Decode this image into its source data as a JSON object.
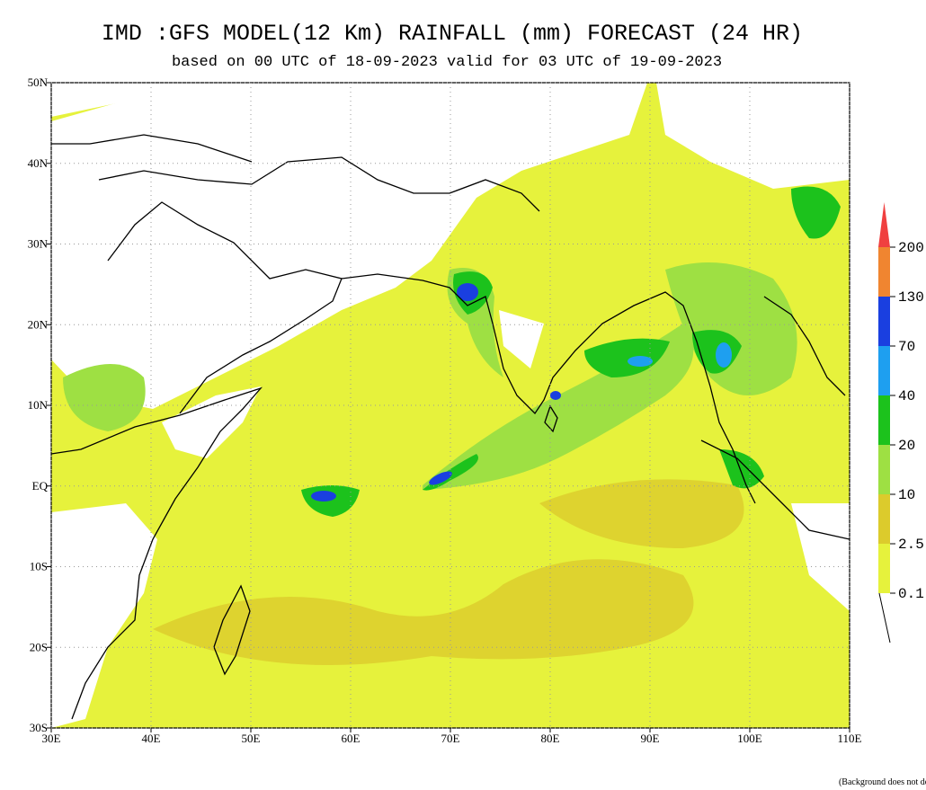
{
  "header": {
    "title": "IMD :GFS MODEL(12 Km) RAINFALL (mm) FORECAST (24 HR)",
    "subtitle": "based on 00 UTC of 18-09-2023 valid for 03 UTC of 19-09-2023"
  },
  "map": {
    "lonlim": [
      30,
      110
    ],
    "latlim": [
      -30,
      50
    ],
    "grid": true,
    "lon_ticks": [
      {
        "value": 30,
        "label": "30E"
      },
      {
        "value": 40,
        "label": "40E"
      },
      {
        "value": 50,
        "label": "50E"
      },
      {
        "value": 60,
        "label": "60E"
      },
      {
        "value": 70,
        "label": "70E"
      },
      {
        "value": 80,
        "label": "80E"
      },
      {
        "value": 90,
        "label": "90E"
      },
      {
        "value": 100,
        "label": "100E"
      },
      {
        "value": 110,
        "label": "110E"
      }
    ],
    "lat_ticks": [
      {
        "value": 50,
        "label": "50N"
      },
      {
        "value": 40,
        "label": "40N"
      },
      {
        "value": 30,
        "label": "30N"
      },
      {
        "value": 20,
        "label": "20N"
      },
      {
        "value": 10,
        "label": "10N"
      },
      {
        "value": 0,
        "label": "EQ"
      },
      {
        "value": -10,
        "label": "10S"
      },
      {
        "value": -20,
        "label": "20S"
      },
      {
        "value": -30,
        "label": "30S"
      }
    ]
  },
  "legend": {
    "levels": [
      0.1,
      2.5,
      10,
      20,
      40,
      70,
      130,
      200
    ],
    "colors": [
      "#e6f23c",
      "#dccb2c",
      "#9ee043",
      "#1cc21c",
      "#1e9ff0",
      "#1a3fe0",
      "#f08530",
      "#f04040"
    ]
  },
  "footnote": "(Background does not depict political boundary)"
}
